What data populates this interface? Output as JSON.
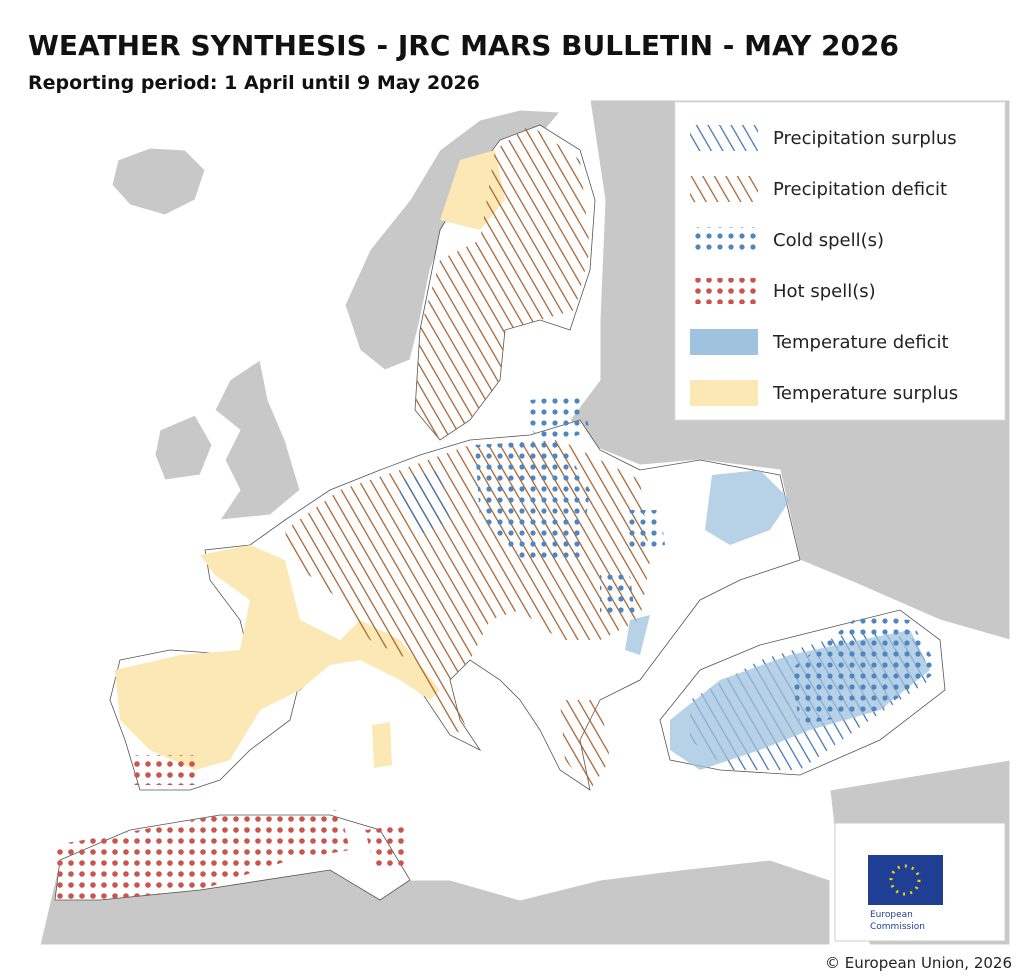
{
  "header": {
    "title": "WEATHER SYNTHESIS - JRC MARS BULLETIN - MAY 2026",
    "subtitle": "Reporting period: 1 April until 9 May 2026"
  },
  "legend": {
    "items": [
      {
        "label": "Precipitation surplus"
      },
      {
        "label": "Precipitation deficit"
      },
      {
        "label": "Cold spell(s)"
      },
      {
        "label": "Hot spell(s)"
      },
      {
        "label": "Temperature deficit"
      },
      {
        "label": "Temperature surplus"
      }
    ]
  },
  "logo": {
    "lines": [
      "European",
      "Commission"
    ]
  },
  "footer": {
    "copyright": "© European Union, 2026"
  }
}
